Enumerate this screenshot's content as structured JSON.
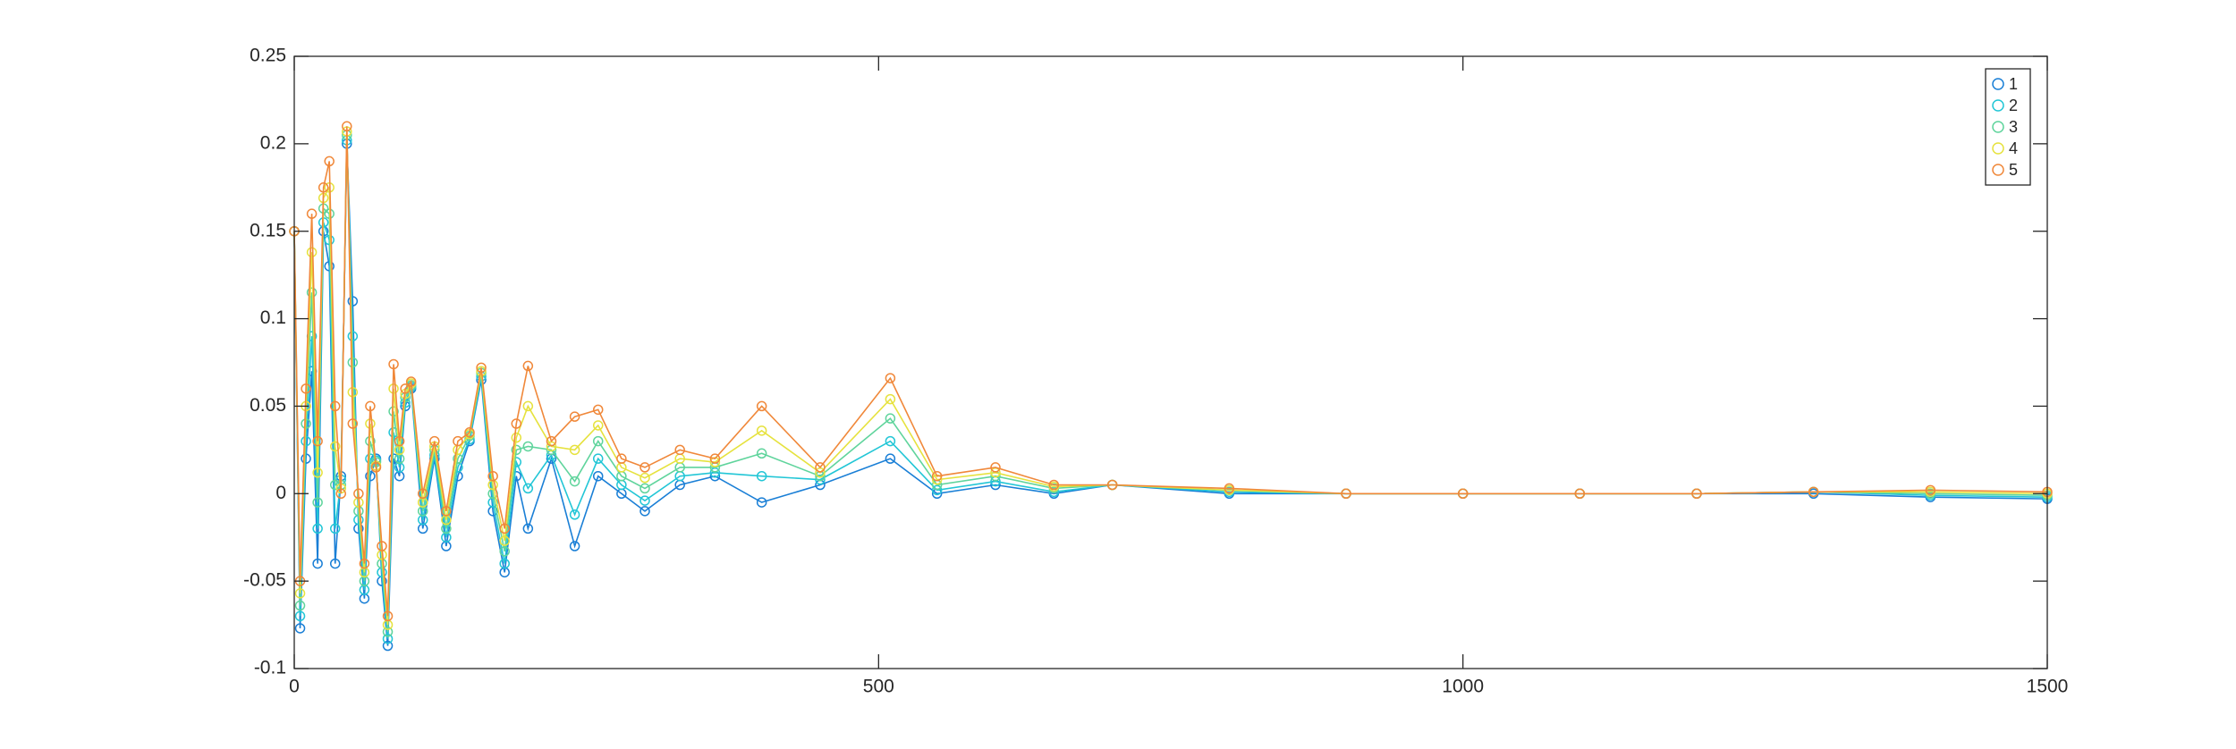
{
  "chart_data": {
    "type": "scatter",
    "line": true,
    "marker": "circle",
    "box": true,
    "legend": "upper right",
    "x": [
      0,
      5,
      10,
      15,
      20,
      25,
      30,
      35,
      40,
      45,
      50,
      55,
      60,
      65,
      70,
      75,
      80,
      85,
      90,
      95,
      100,
      110,
      120,
      130,
      140,
      150,
      160,
      170,
      180,
      190,
      200,
      220,
      240,
      260,
      280,
      300,
      330,
      360,
      400,
      450,
      510,
      550,
      600,
      650,
      700,
      800,
      900,
      1000,
      1100,
      1200,
      1300,
      1400,
      1500
    ],
    "xlim": [
      0,
      1500
    ],
    "xticks": [
      0,
      500,
      1000,
      1500
    ],
    "ylim": [
      -0.1,
      0.25
    ],
    "yticks": [
      -0.1,
      -0.05,
      0,
      0.05,
      0.1,
      0.15,
      0.2,
      0.25
    ],
    "series": [
      {
        "name": "1",
        "color": "#1a7fd6",
        "values": [
          0.15,
          -0.077,
          0.02,
          0.07,
          -0.04,
          0.15,
          0.13,
          -0.04,
          0.01,
          0.2,
          0.11,
          -0.02,
          -0.06,
          0.01,
          0.02,
          -0.05,
          -0.087,
          0.02,
          0.01,
          0.05,
          0.06,
          -0.02,
          0.02,
          -0.03,
          0.01,
          0.03,
          0.065,
          -0.01,
          -0.045,
          0.01,
          -0.02,
          0.02,
          -0.03,
          0.01,
          0,
          -0.01,
          0.005,
          0.01,
          -0.005,
          0.005,
          0.02,
          0,
          0.005,
          0,
          0.005,
          0,
          0,
          0,
          0,
          0,
          0,
          -0.002,
          -0.003
        ]
      },
      {
        "name": "2",
        "color": "#22c6d6",
        "values": [
          0.15,
          -0.07,
          0.03,
          0.09,
          -0.02,
          0.155,
          0.145,
          -0.02,
          0.008,
          0.202,
          0.09,
          -0.015,
          -0.055,
          0.02,
          0.019,
          -0.045,
          -0.083,
          0.035,
          0.015,
          0.052,
          0.061,
          -0.015,
          0.022,
          -0.025,
          0.015,
          0.031,
          0.067,
          -0.005,
          -0.04,
          0.018,
          0.003,
          0.022,
          -0.012,
          0.02,
          0.005,
          -0.004,
          0.01,
          0.012,
          0.01,
          0.008,
          0.03,
          0.002,
          0.007,
          0.001,
          0.005,
          0.001,
          0,
          0,
          0,
          0,
          0.001,
          -0.001,
          -0.002
        ]
      },
      {
        "name": "3",
        "color": "#5fd49c",
        "values": [
          0.15,
          -0.064,
          0.04,
          0.115,
          -0.005,
          0.163,
          0.16,
          0.005,
          0.005,
          0.205,
          0.075,
          -0.01,
          -0.05,
          0.03,
          0.018,
          -0.04,
          -0.079,
          0.047,
          0.02,
          0.055,
          0.062,
          -0.01,
          0.025,
          -0.02,
          0.02,
          0.033,
          0.069,
          0,
          -0.033,
          0.025,
          0.027,
          0.025,
          0.007,
          0.03,
          0.01,
          0.003,
          0.015,
          0.015,
          0.023,
          0.01,
          0.043,
          0.005,
          0.01,
          0.003,
          0.005,
          0.002,
          0,
          0,
          0,
          0,
          0.001,
          0,
          -0.001
        ]
      },
      {
        "name": "4",
        "color": "#e6e23e",
        "values": [
          0.15,
          -0.057,
          0.05,
          0.138,
          0.012,
          0.169,
          0.175,
          0.027,
          0.003,
          0.207,
          0.058,
          -0.005,
          -0.045,
          0.04,
          0.016,
          -0.035,
          -0.075,
          0.06,
          0.025,
          0.057,
          0.063,
          -0.005,
          0.027,
          -0.015,
          0.025,
          0.034,
          0.07,
          0.005,
          -0.027,
          0.032,
          0.05,
          0.027,
          0.025,
          0.039,
          0.015,
          0.009,
          0.02,
          0.018,
          0.036,
          0.012,
          0.054,
          0.008,
          0.012,
          0.004,
          0.005,
          0.002,
          0,
          0,
          0,
          0,
          0.001,
          0.001,
          0
        ]
      },
      {
        "name": "5",
        "color": "#f0883a",
        "values": [
          0.15,
          -0.05,
          0.06,
          0.16,
          0.03,
          0.175,
          0.19,
          0.05,
          0,
          0.21,
          0.04,
          0,
          -0.04,
          0.05,
          0.015,
          -0.03,
          -0.07,
          0.074,
          0.03,
          0.06,
          0.064,
          0,
          0.03,
          -0.01,
          0.03,
          0.035,
          0.072,
          0.01,
          -0.02,
          0.04,
          0.073,
          0.03,
          0.044,
          0.048,
          0.02,
          0.015,
          0.025,
          0.02,
          0.05,
          0.015,
          0.066,
          0.01,
          0.015,
          0.005,
          0.005,
          0.003,
          0,
          0,
          0,
          0,
          0.001,
          0.002,
          0.001
        ]
      }
    ]
  }
}
